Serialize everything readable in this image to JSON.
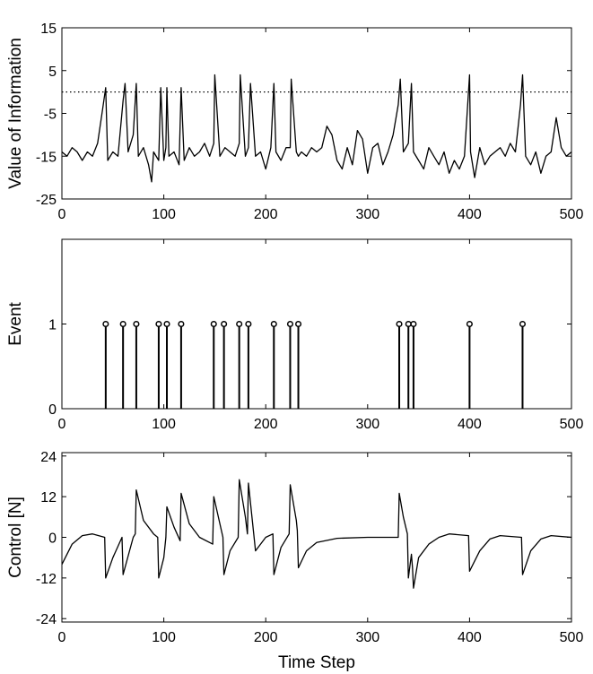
{
  "chart_data": [
    {
      "type": "line",
      "title": "",
      "xlabel": "",
      "ylabel": "Value of Information",
      "xlim": [
        0,
        500
      ],
      "ylim": [
        -25,
        15
      ],
      "xticks": [
        0,
        100,
        200,
        300,
        400,
        500
      ],
      "yticks": [
        -25,
        -15,
        -5,
        5,
        15
      ],
      "grid": false,
      "threshold": 0,
      "series": [
        {
          "x": [
            0,
            5,
            10,
            15,
            20,
            25,
            30,
            35,
            40,
            43,
            45,
            50,
            55,
            60,
            62,
            65,
            70,
            73,
            75,
            80,
            85,
            88,
            90,
            95,
            97,
            100,
            102,
            103,
            105,
            110,
            115,
            117,
            120,
            125,
            130,
            135,
            140,
            145,
            149,
            150,
            155,
            160,
            165,
            170,
            174,
            175,
            180,
            183,
            185,
            190,
            195,
            200,
            205,
            208,
            210,
            215,
            220,
            224,
            225,
            230,
            232,
            235,
            240,
            245,
            250,
            255,
            260,
            265,
            270,
            275,
            280,
            285,
            290,
            295,
            300,
            305,
            310,
            315,
            320,
            325,
            330,
            332,
            335,
            340,
            343,
            345,
            350,
            355,
            360,
            365,
            370,
            375,
            380,
            385,
            390,
            395,
            400,
            401,
            405,
            410,
            415,
            420,
            425,
            430,
            435,
            440,
            445,
            450,
            452,
            455,
            460,
            465,
            470,
            475,
            480,
            485,
            490,
            495,
            500
          ],
          "y": [
            -14,
            -15,
            -13,
            -14,
            -16,
            -14,
            -15,
            -12,
            -4,
            1,
            -16,
            -14,
            -15,
            -2,
            2,
            -14,
            -10,
            2,
            -15,
            -13,
            -17,
            -21,
            -14,
            -16,
            1,
            -16,
            -13,
            1,
            -15,
            -14,
            -17,
            1,
            -16,
            -13,
            -15,
            -14,
            -12,
            -15,
            -12,
            4,
            -15,
            -13,
            -14,
            -15,
            -12,
            4,
            -15,
            -13,
            2,
            -15,
            -14,
            -18,
            -13,
            2,
            -14,
            -16,
            -13,
            -13,
            3,
            -14,
            -15,
            -14,
            -15,
            -13,
            -14,
            -13,
            -8,
            -10,
            -16,
            -18,
            -13,
            -17,
            -9,
            -11,
            -19,
            -13,
            -12,
            -17,
            -14,
            -10,
            -3,
            3,
            -14,
            -12,
            2,
            -14,
            -16,
            -18,
            -13,
            -15,
            -17,
            -14,
            -19,
            -16,
            -18,
            -15,
            4,
            -14,
            -20,
            -13,
            -17,
            -15,
            -14,
            -13,
            -15,
            -12,
            -14,
            -3,
            4,
            -15,
            -17,
            -14,
            -19,
            -15,
            -14,
            -6,
            -13,
            -15,
            -14
          ]
        }
      ]
    },
    {
      "type": "stem",
      "title": "",
      "xlabel": "",
      "ylabel": "Event",
      "xlim": [
        0,
        500
      ],
      "ylim": [
        0,
        2
      ],
      "xticks": [
        0,
        100,
        200,
        300,
        400,
        500
      ],
      "yticks": [
        0,
        1
      ],
      "grid": false,
      "events": [
        43,
        60,
        73,
        95,
        103,
        117,
        149,
        159,
        174,
        183,
        208,
        224,
        232,
        331,
        340,
        345,
        400,
        452
      ]
    },
    {
      "type": "line",
      "title": "",
      "xlabel": "Time Step",
      "ylabel": "Control [N]",
      "xlim": [
        0,
        500
      ],
      "ylim": [
        -25,
        25
      ],
      "xticks": [
        0,
        100,
        200,
        300,
        400,
        500
      ],
      "yticks": [
        -24,
        -12,
        0,
        12,
        24
      ],
      "grid": false,
      "series": [
        {
          "x": [
            0,
            10,
            20,
            30,
            42,
            43,
            50,
            59,
            60,
            70,
            72,
            73,
            80,
            90,
            94,
            95,
            100,
            102,
            103,
            110,
            116,
            117,
            125,
            135,
            148,
            149,
            155,
            158,
            159,
            165,
            173,
            174,
            180,
            182,
            183,
            190,
            200,
            207,
            208,
            215,
            223,
            224,
            230,
            231,
            232,
            240,
            250,
            270,
            300,
            330,
            331,
            335,
            339,
            340,
            343,
            344,
            345,
            350,
            360,
            370,
            380,
            399,
            400,
            410,
            420,
            430,
            451,
            452,
            460,
            470,
            480,
            500
          ],
          "y": [
            -8,
            -2,
            0.5,
            1,
            0,
            -12,
            -6,
            0,
            -11,
            0,
            1,
            14,
            5,
            1,
            0,
            -12,
            -6,
            0,
            9,
            3,
            -1,
            13,
            4,
            0,
            -2,
            12,
            4,
            0,
            -11,
            -4,
            0,
            17,
            6,
            1,
            16,
            -4,
            0,
            1,
            -11,
            -3,
            1,
            15.5,
            5,
            2,
            -9,
            -4,
            -1.5,
            -0.3,
            0,
            0,
            13,
            6,
            1,
            -12,
            -5,
            -9,
            -15,
            -6,
            -2,
            0,
            1,
            0.5,
            -10,
            -4,
            -0.5,
            0.5,
            0,
            -11,
            -4,
            -0.5,
            0.5,
            0
          ]
        }
      ]
    }
  ]
}
